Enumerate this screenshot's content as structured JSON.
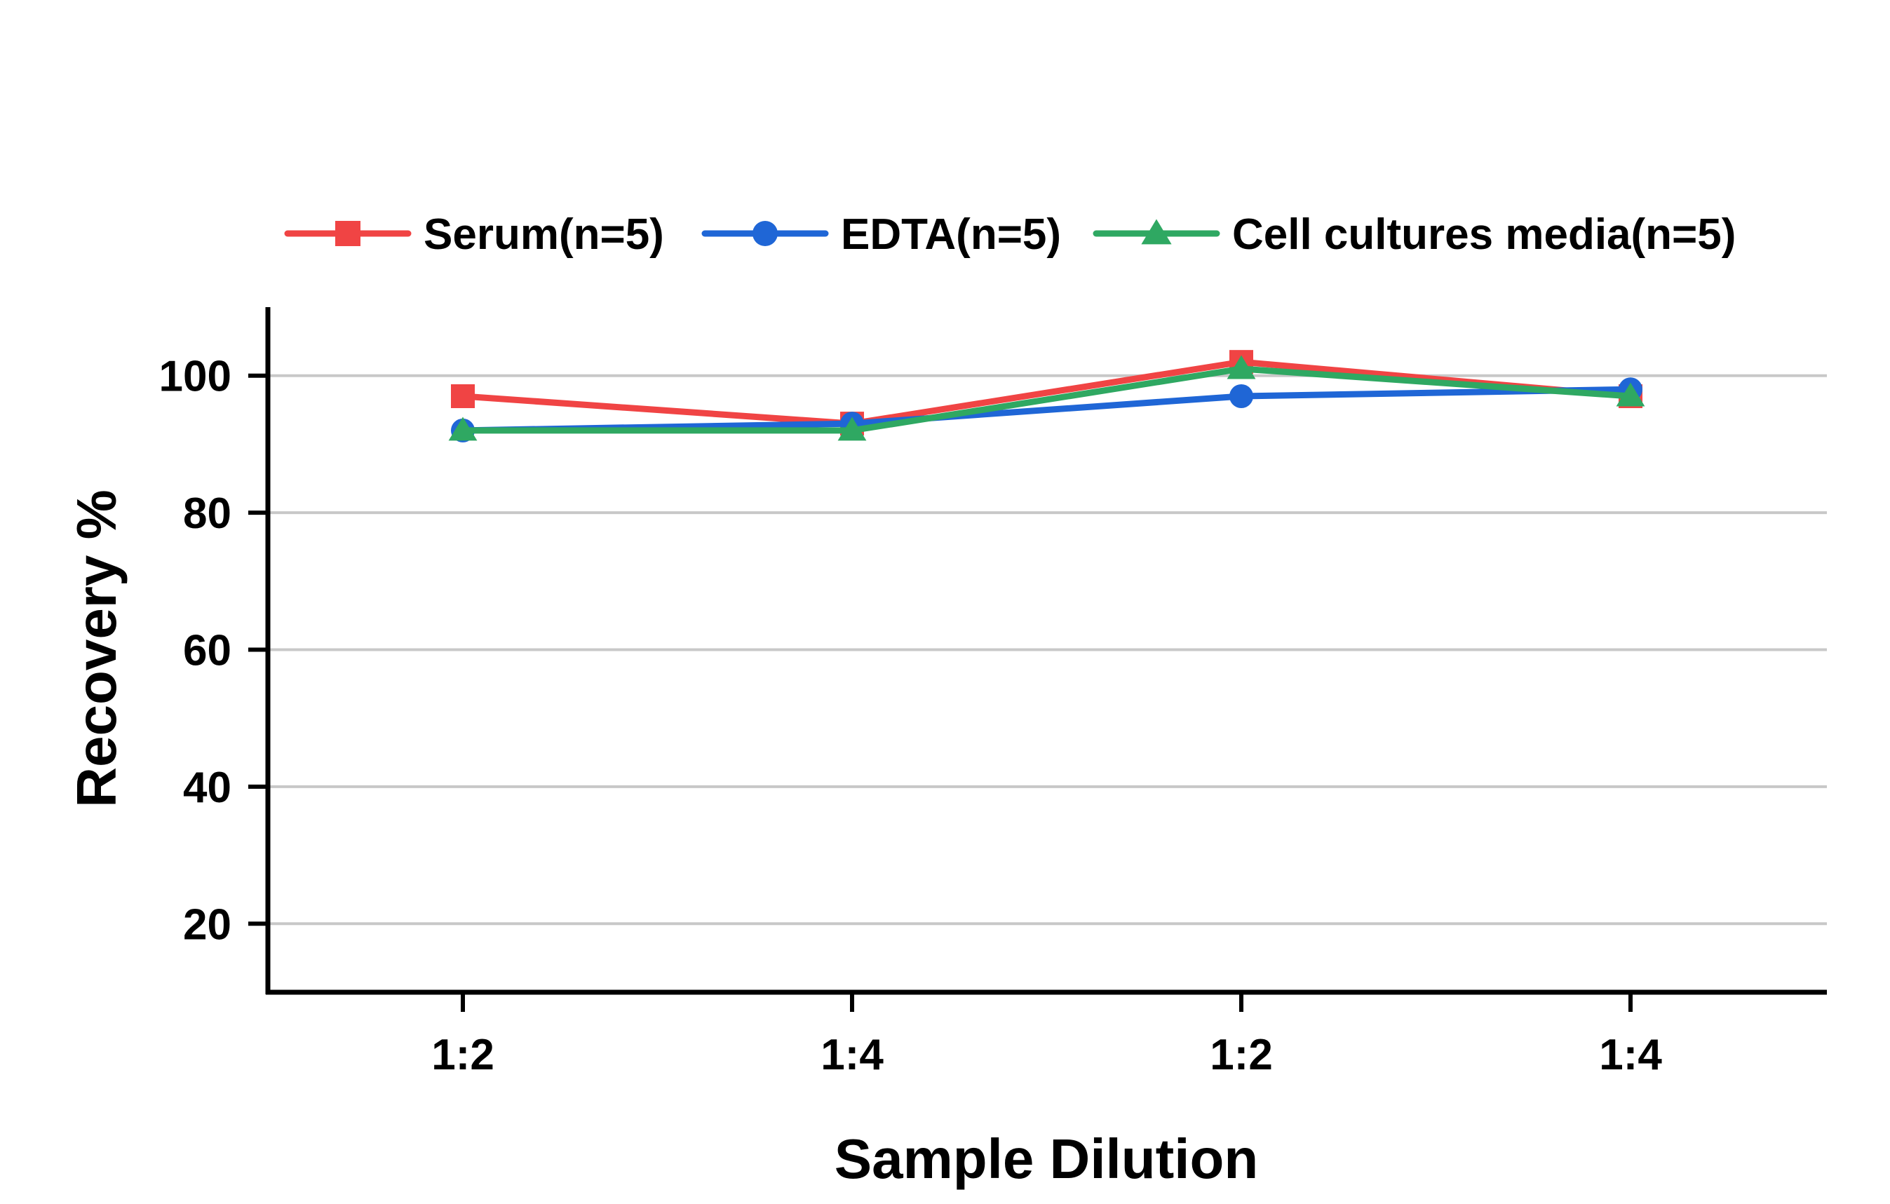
{
  "chart_data": {
    "type": "line",
    "categories": [
      "1:2",
      "1:4",
      "1:2",
      "1:4"
    ],
    "series": [
      {
        "name": "Serum(n=5)",
        "values": [
          97,
          93,
          102,
          97
        ],
        "color": "#f04444",
        "marker": "square"
      },
      {
        "name": "EDTA(n=5)",
        "values": [
          92,
          93,
          97,
          98
        ],
        "color": "#1f66d6",
        "marker": "circle"
      },
      {
        "name": "Cell cultures media(n=5)",
        "values": [
          92,
          92,
          101,
          97
        ],
        "color": "#2fa862",
        "marker": "triangle"
      }
    ],
    "xlabel": "Sample Dilution",
    "ylabel": "Recovery %",
    "ylim": [
      10,
      110
    ],
    "yticks": [
      20,
      40,
      60,
      80,
      100
    ],
    "grid": true,
    "legend_position": "top"
  }
}
